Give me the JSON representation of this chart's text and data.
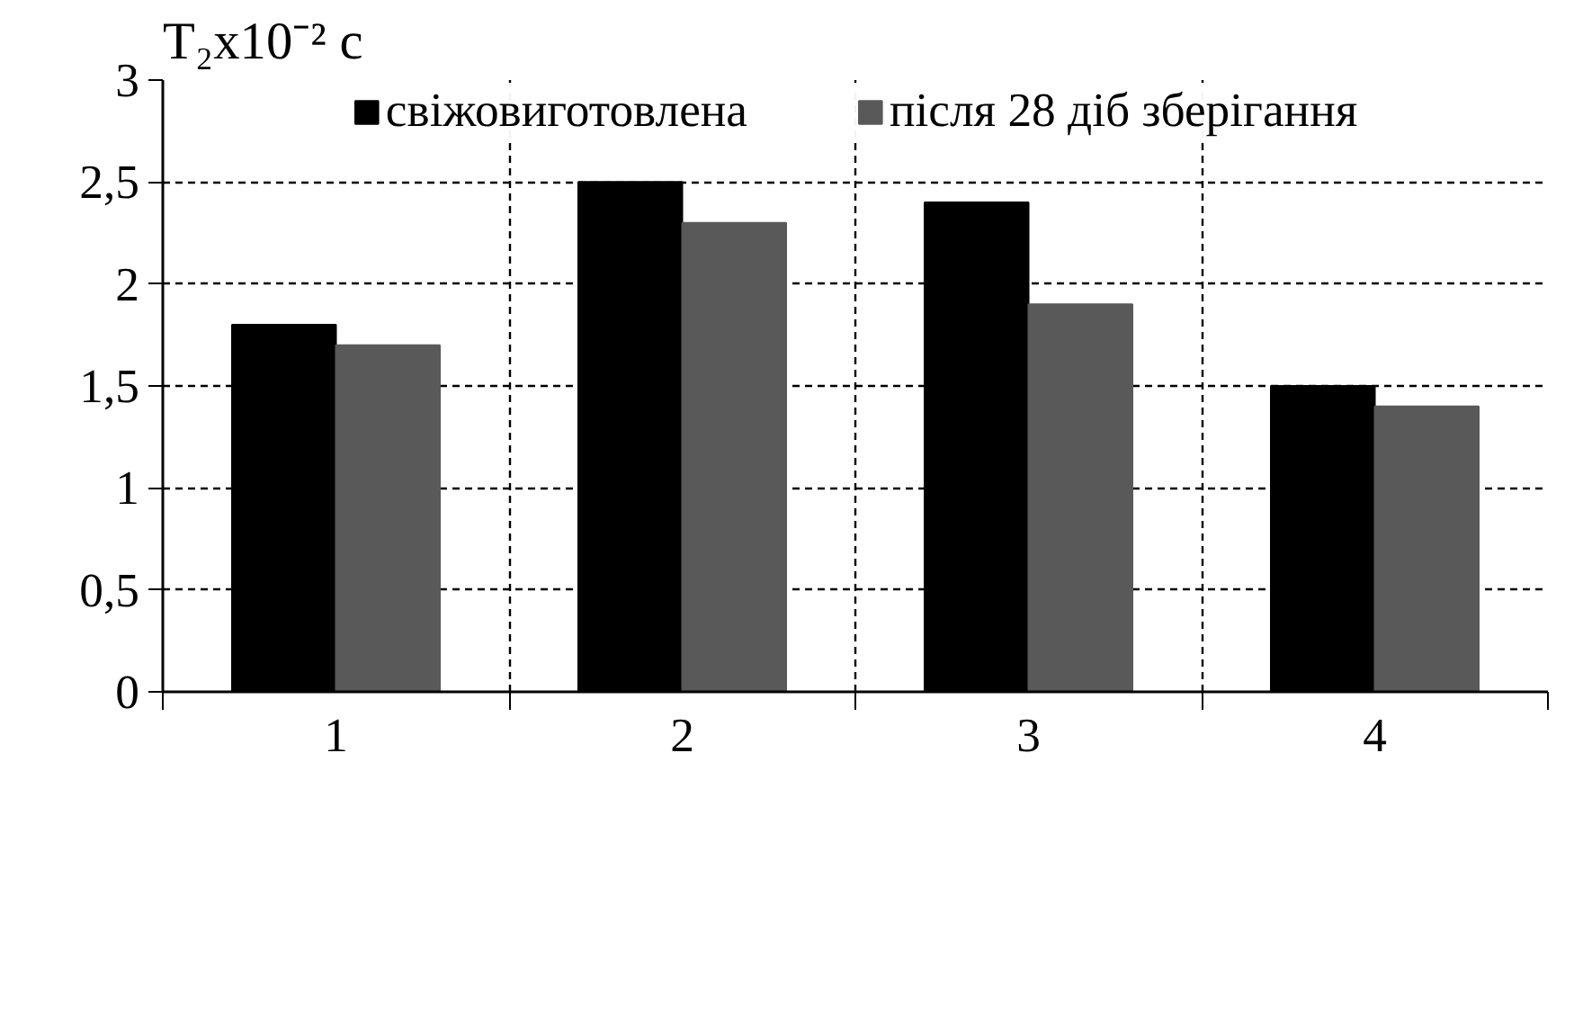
{
  "chart_data": {
    "type": "bar",
    "ylabel": "T₂x10⁻² с",
    "categories": [
      "1",
      "2",
      "3",
      "4"
    ],
    "series": [
      {
        "name": "свіжовиготовлена",
        "color": "#000000",
        "values": [
          1.8,
          2.5,
          2.4,
          1.5
        ]
      },
      {
        "name": "після 28 діб зберігання",
        "color": "#595959",
        "values": [
          1.7,
          2.3,
          1.9,
          1.4
        ]
      }
    ],
    "ylim": [
      0,
      3
    ],
    "yticks": [
      0,
      {
        "value": 0.5,
        "label": "0,5"
      },
      1,
      {
        "value": 1.5,
        "label": "1,5"
      },
      2,
      {
        "value": 2.5,
        "label": "2,5"
      },
      3
    ],
    "grid": true,
    "legend": "top"
  }
}
